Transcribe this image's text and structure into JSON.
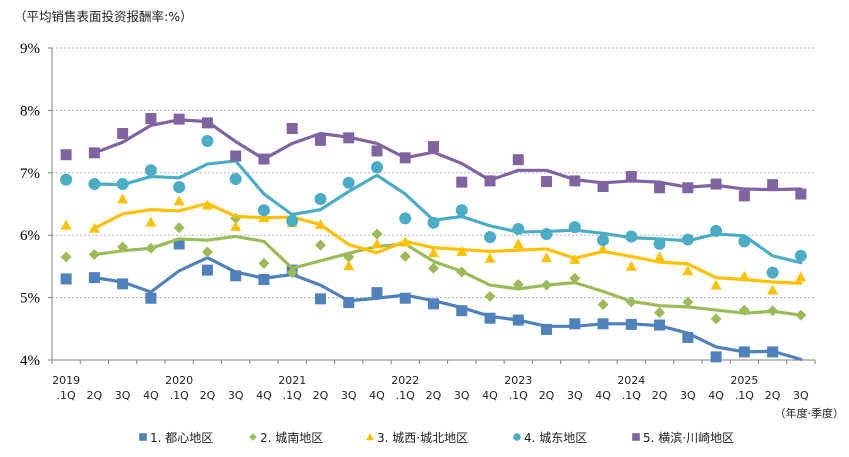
{
  "chart_data": {
    "type": "line",
    "title": "（平均销售表面投资报酬率:%）",
    "xlabel": "（年度·季度）",
    "ylabel": "",
    "ylim": [
      4,
      9
    ],
    "yticks": [
      "4%",
      "5%",
      "6%",
      "7%",
      "8%",
      "9%"
    ],
    "grid": true,
    "legend_position": "bottom",
    "x_year_labels": [
      "2019",
      "",
      "",
      "",
      "2020",
      "",
      "",
      "",
      "2021",
      "",
      "",
      "",
      "2022",
      "",
      "",
      "",
      "2023",
      "",
      "",
      "",
      "2024",
      "",
      "",
      "",
      "2025",
      "",
      ""
    ],
    "x_quarter_labels": [
      ".1Q",
      "2Q",
      "3Q",
      "4Q",
      ".1Q",
      "2Q",
      "3Q",
      "4Q",
      ".1Q",
      "2Q",
      "3Q",
      "4Q",
      ".1Q",
      "2Q",
      "3Q",
      "4Q",
      ".1Q",
      "2Q",
      "3Q",
      "4Q",
      ".1Q",
      "2Q",
      "3Q",
      "4Q",
      ".1Q",
      "2Q",
      "3Q"
    ],
    "series": [
      {
        "name": "1. 都心地区",
        "color": "#4F81BD",
        "marker": "square",
        "points": [
          5.3,
          5.32,
          5.22,
          4.99,
          5.86,
          5.44,
          5.35,
          5.29,
          5.44,
          4.98,
          4.92,
          5.08,
          4.99,
          4.9,
          4.79,
          4.67,
          4.64,
          4.49,
          4.58,
          4.58,
          4.57,
          4.56,
          4.36,
          4.05,
          4.13,
          4.13,
          3.98
        ],
        "trend": [
          null,
          5.32,
          5.25,
          5.09,
          5.43,
          5.64,
          5.41,
          5.31,
          5.37,
          5.2,
          4.95,
          4.99,
          5.04,
          4.95,
          4.84,
          4.7,
          4.64,
          4.54,
          4.54,
          4.58,
          4.58,
          4.55,
          4.43,
          4.21,
          4.13,
          4.14,
          4.01
        ]
      },
      {
        "name": "2. 城南地区",
        "color": "#9BBB59",
        "marker": "diamond",
        "points": [
          5.65,
          5.69,
          5.81,
          5.79,
          6.12,
          5.73,
          6.27,
          5.55,
          5.4,
          5.84,
          5.65,
          6.02,
          5.66,
          5.47,
          5.41,
          5.02,
          5.21,
          5.2,
          5.31,
          4.89,
          4.93,
          4.76,
          4.93,
          4.66,
          4.8,
          4.79,
          4.72
        ],
        "trend": [
          null,
          5.69,
          5.75,
          5.79,
          5.94,
          5.92,
          5.98,
          5.9,
          5.47,
          5.59,
          5.71,
          5.82,
          5.86,
          5.58,
          5.42,
          5.2,
          5.14,
          5.2,
          5.24,
          5.1,
          4.94,
          4.87,
          4.85,
          4.8,
          4.75,
          4.78,
          4.72
        ]
      },
      {
        "name": "3. 城西·城北地区",
        "color": "#FFC000",
        "marker": "triangle",
        "points": [
          6.16,
          6.11,
          6.58,
          6.21,
          6.55,
          6.48,
          6.14,
          6.28,
          6.2,
          6.17,
          5.51,
          5.86,
          5.89,
          5.72,
          5.74,
          5.63,
          5.86,
          5.64,
          5.61,
          5.78,
          5.5,
          5.65,
          5.43,
          5.2,
          5.34,
          5.12,
          5.33
        ],
        "trend": [
          null,
          6.11,
          6.34,
          6.41,
          6.39,
          6.51,
          6.3,
          6.28,
          6.29,
          6.17,
          5.85,
          5.72,
          5.9,
          5.8,
          5.77,
          5.74,
          5.76,
          5.78,
          5.63,
          5.74,
          5.66,
          5.57,
          5.54,
          5.32,
          5.29,
          5.25,
          5.23
        ]
      },
      {
        "name": "4. 城东地区",
        "color": "#4BACC6",
        "marker": "circle",
        "points": [
          6.89,
          6.82,
          6.82,
          7.04,
          6.77,
          7.51,
          6.9,
          6.4,
          6.23,
          6.58,
          6.84,
          7.09,
          6.27,
          6.2,
          6.4,
          5.97,
          6.1,
          6.02,
          6.13,
          5.92,
          5.98,
          5.86,
          5.93,
          6.07,
          5.9,
          5.4,
          5.67
        ],
        "trend": [
          null,
          6.82,
          6.81,
          6.94,
          6.92,
          7.14,
          7.19,
          6.66,
          6.33,
          6.41,
          6.7,
          6.96,
          6.66,
          6.24,
          6.3,
          6.15,
          6.05,
          6.06,
          6.08,
          6.03,
          5.96,
          5.94,
          5.91,
          6.02,
          5.99,
          5.67,
          5.56
        ]
      },
      {
        "name": "5. 横滨·川崎地区",
        "color": "#8064A2",
        "marker": "square",
        "points": [
          7.29,
          7.32,
          7.63,
          7.87,
          7.86,
          7.8,
          7.27,
          7.22,
          7.71,
          7.52,
          7.56,
          7.35,
          7.24,
          7.42,
          6.85,
          6.87,
          7.21,
          6.86,
          6.87,
          6.78,
          6.94,
          6.76,
          6.76,
          6.82,
          6.63,
          6.81,
          6.66
        ],
        "trend": [
          null,
          7.32,
          7.49,
          7.76,
          7.85,
          7.82,
          7.5,
          7.22,
          7.47,
          7.63,
          7.57,
          7.47,
          7.24,
          7.33,
          7.15,
          6.88,
          7.04,
          7.04,
          6.89,
          6.84,
          6.87,
          6.85,
          6.77,
          6.8,
          6.74,
          6.73,
          6.74
        ]
      }
    ]
  }
}
